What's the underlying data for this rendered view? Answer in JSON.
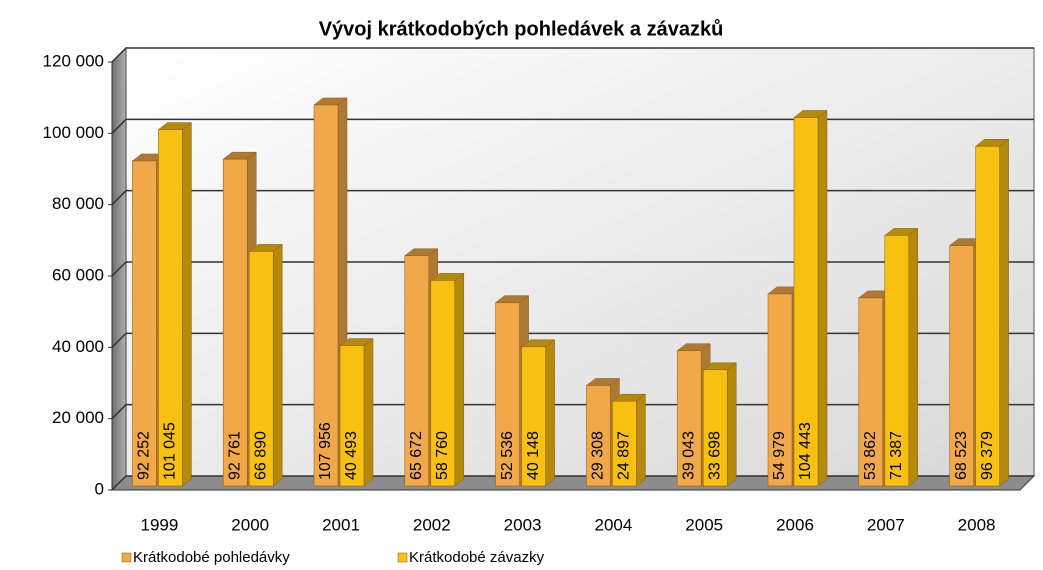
{
  "chart_data": {
    "type": "bar",
    "title": "Vývoj krátkodobých pohledávek a závazků",
    "categories": [
      "1999",
      "2000",
      "2001",
      "2002",
      "2003",
      "2004",
      "2005",
      "2006",
      "2007",
      "2008"
    ],
    "series": [
      {
        "name": "Krátkodobé pohledávky",
        "color": "#f0a848",
        "values": [
          92252,
          92761,
          107956,
          65672,
          52536,
          29308,
          39043,
          54979,
          53862,
          68523
        ],
        "value_labels": [
          "92 252",
          "92 761",
          "107 956",
          "65 672",
          "52 536",
          "29 308",
          "39 043",
          "54 979",
          "53 862",
          "68 523"
        ]
      },
      {
        "name": "Krátkodobé závazky",
        "color": "#f8c010",
        "values": [
          101045,
          66890,
          40493,
          58760,
          40148,
          24897,
          33698,
          104443,
          71387,
          96379
        ],
        "value_labels": [
          "101 045",
          "66 890",
          "40 493",
          "58 760",
          "40 148",
          "24 897",
          "33 698",
          "104 443",
          "71 387",
          "96 379"
        ]
      }
    ],
    "ylim": [
      0,
      120000
    ],
    "yticks": [
      0,
      {
        "value": 20000,
        "label": "20 000"
      },
      {
        "value": 40000,
        "label": "40 000"
      },
      {
        "value": 60000,
        "label": "60 000"
      },
      {
        "value": 80000,
        "label": "80 000"
      },
      {
        "value": 100000,
        "label": "100 000"
      },
      {
        "value": 120000,
        "label": "120 000"
      }
    ],
    "grid": true,
    "legend": "bottom-left"
  }
}
